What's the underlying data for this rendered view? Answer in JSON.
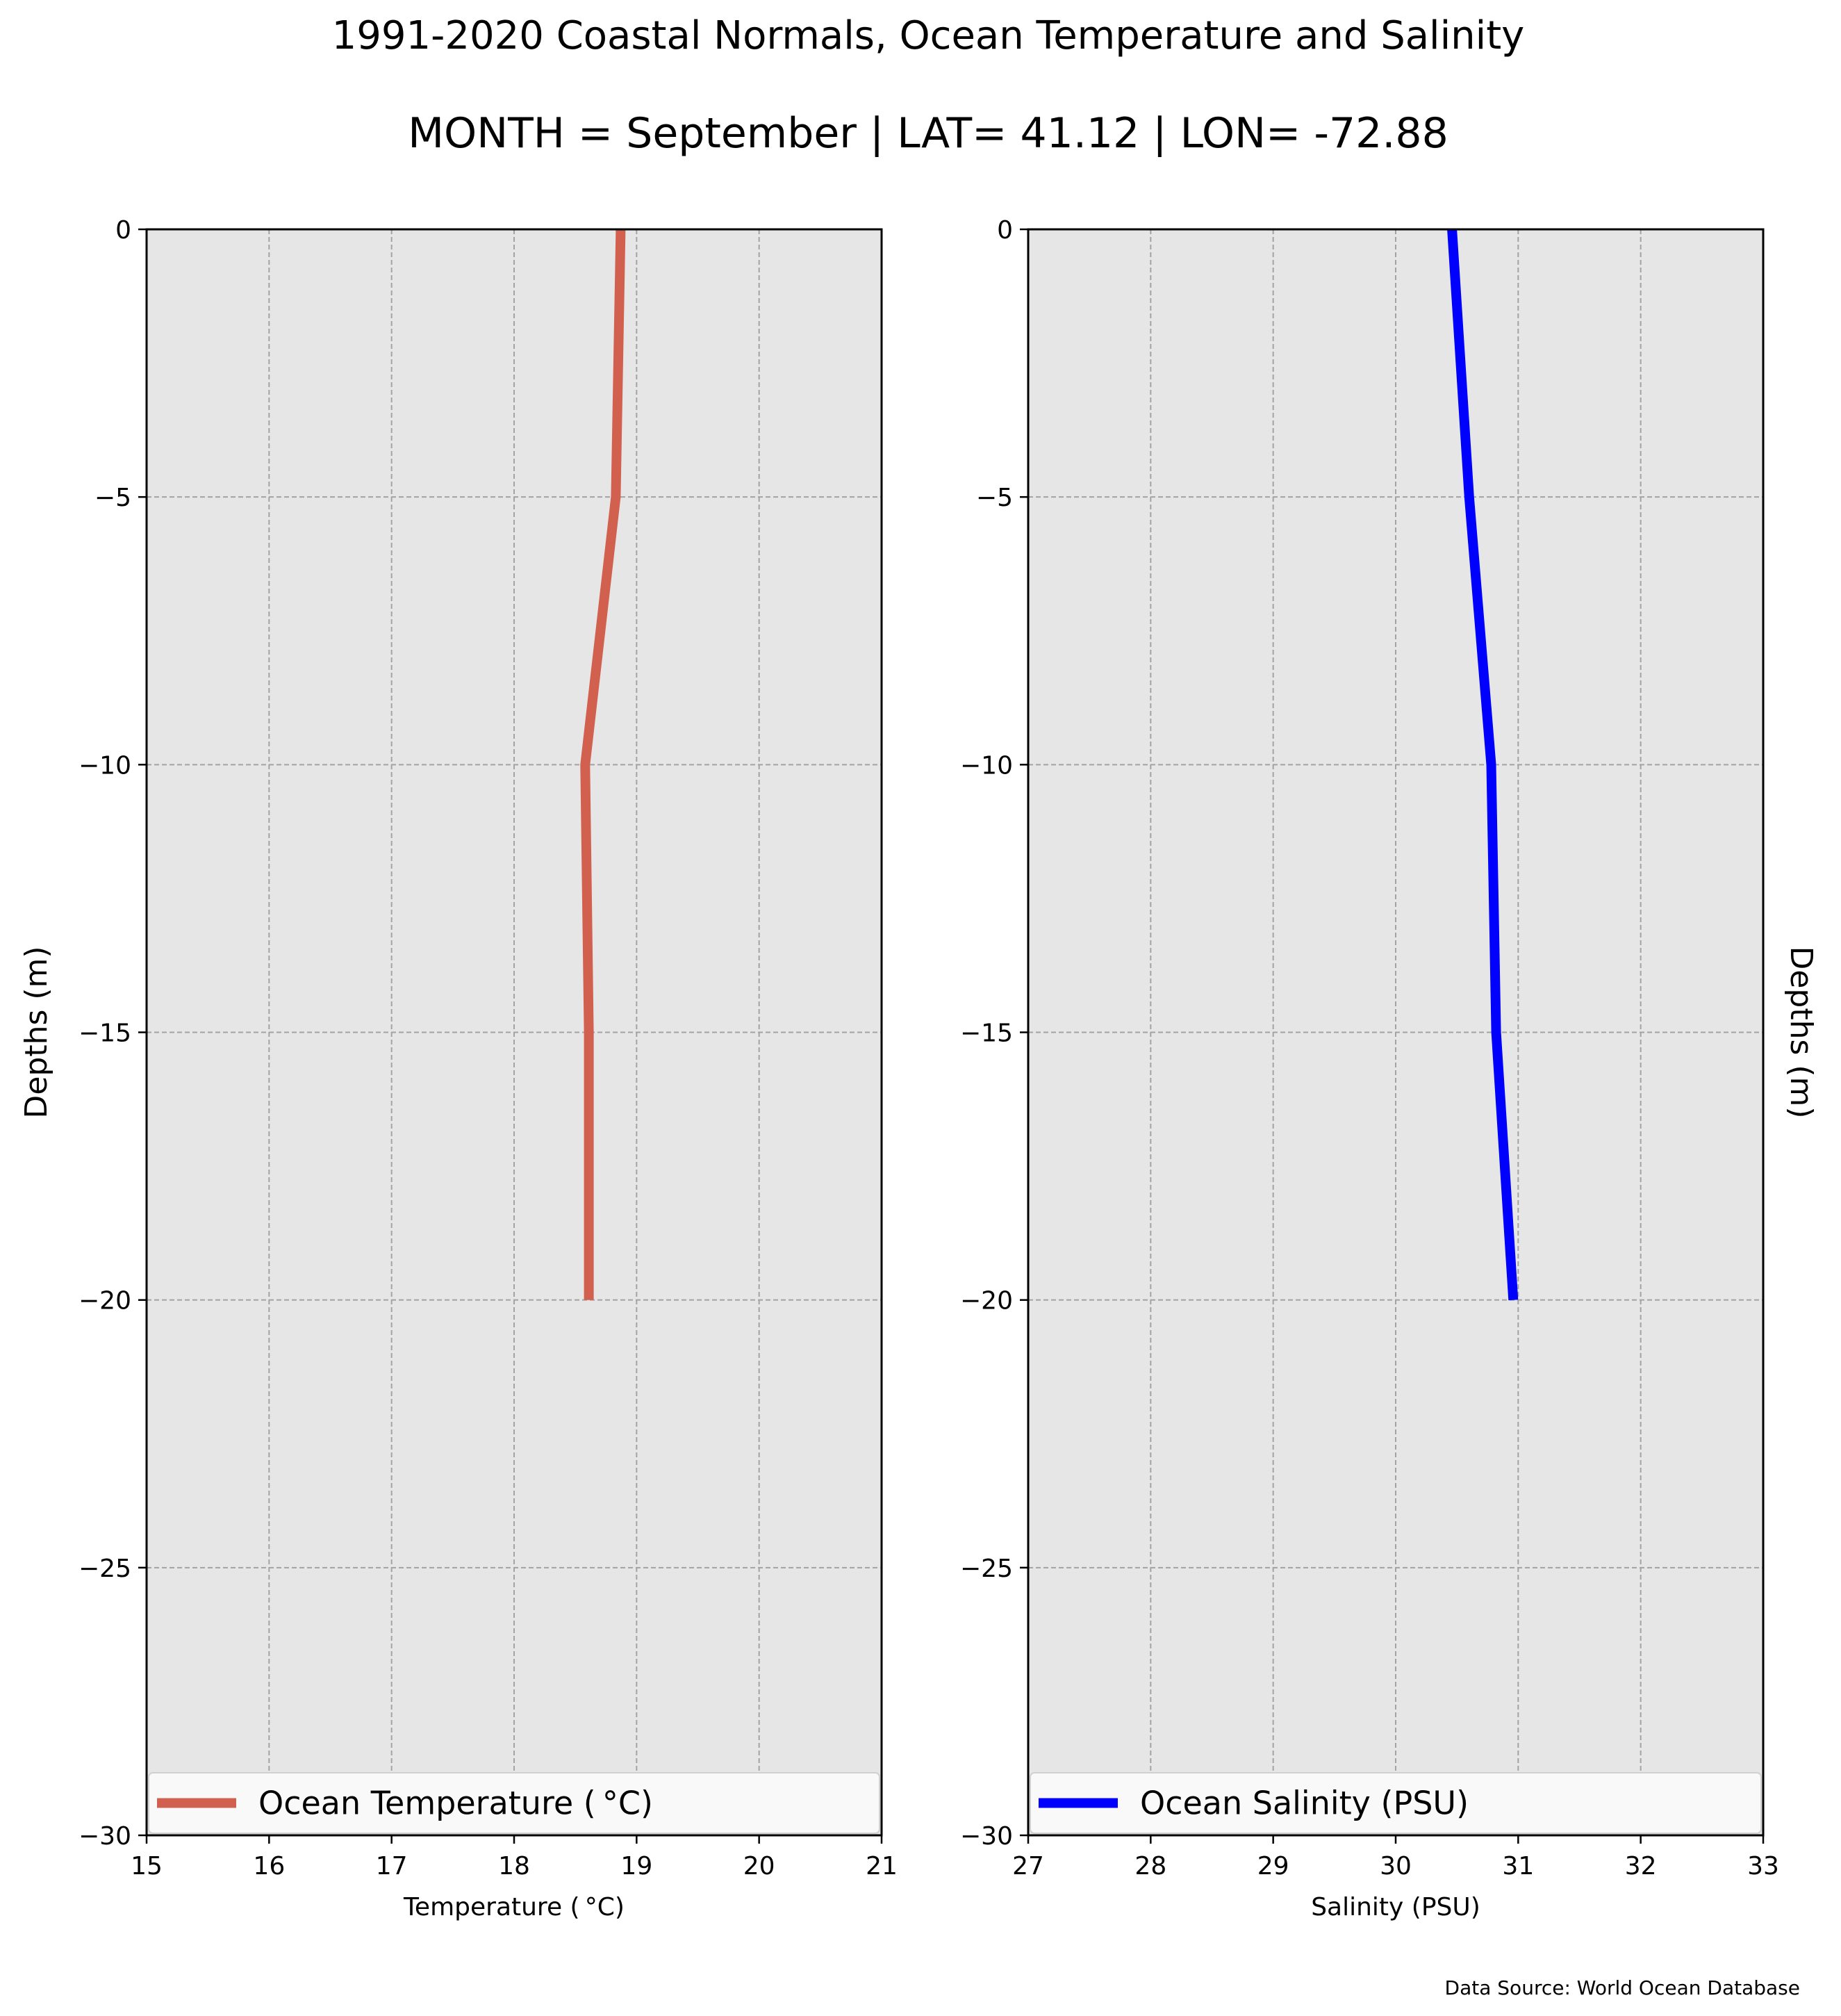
{
  "figure": {
    "title_line1": "1991-2020 Coastal Normals, Ocean Temperature and Salinity",
    "title_line2": "MONTH = September | LAT= 41.12 | LON= -72.88",
    "source_note": "Data Source: World Ocean Database"
  },
  "chart_data": [
    {
      "type": "line",
      "title": "",
      "xlabel": "Temperature ( °C)",
      "ylabel": "Depths (m)",
      "xlim": [
        15,
        21
      ],
      "ylim": [
        -30,
        0
      ],
      "xticks": [
        15,
        16,
        17,
        18,
        19,
        20,
        21
      ],
      "xtick_labels": [
        "15",
        "16",
        "17",
        "18",
        "19",
        "20",
        "21"
      ],
      "yticks": [
        0,
        -5,
        -10,
        -15,
        -20,
        -25,
        -30
      ],
      "ytick_labels": [
        "0",
        "−5",
        "−10",
        "−15",
        "−20",
        "−25",
        "−30"
      ],
      "grid": true,
      "legend_position": "lower center",
      "series": [
        {
          "name": "Ocean Temperature ( °C)",
          "color": "#d1604f",
          "x": [
            18.87,
            18.83,
            18.58,
            18.61,
            18.61
          ],
          "y": [
            0,
            -5,
            -10,
            -15,
            -20
          ]
        }
      ]
    },
    {
      "type": "line",
      "title": "",
      "xlabel": "Salinity (PSU)",
      "ylabel": "Depths (m)",
      "xlim": [
        27,
        33
      ],
      "ylim": [
        -30,
        0
      ],
      "xticks": [
        27,
        28,
        29,
        30,
        31,
        32,
        33
      ],
      "xtick_labels": [
        "27",
        "28",
        "29",
        "30",
        "31",
        "32",
        "33"
      ],
      "yticks": [
        0,
        -5,
        -10,
        -15,
        -20,
        -25,
        -30
      ],
      "ytick_labels": [
        "0",
        "−5",
        "−10",
        "−15",
        "−20",
        "−25",
        "−30"
      ],
      "grid": true,
      "legend_position": "lower center",
      "series": [
        {
          "name": "Ocean Salinity (PSU)",
          "color": "#0000ff",
          "x": [
            30.46,
            30.6,
            30.78,
            30.82,
            30.96
          ],
          "y": [
            0,
            -5,
            -10,
            -15,
            -20
          ]
        }
      ]
    }
  ],
  "colors": {
    "plot_background": "#e6e6e6",
    "grid": "#a3a3a3",
    "axis": "#000000"
  }
}
